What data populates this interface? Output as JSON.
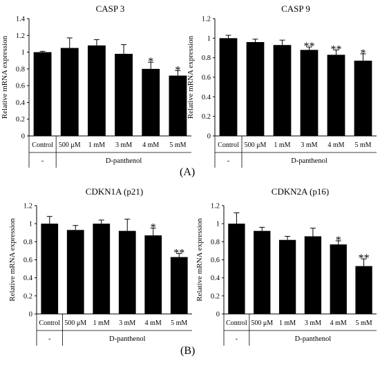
{
  "figure": {
    "panel_labels": [
      "(A)",
      "(B)"
    ]
  },
  "chart_data": [
    {
      "type": "bar",
      "title": "CASP 3",
      "ylabel": "Relative mRNA expression",
      "ylim": [
        0,
        1.4
      ],
      "yticks": [
        "0",
        "0.2",
        "0.4",
        "0.6",
        "0.8",
        "1",
        "1.2",
        "1.4"
      ],
      "categories": [
        "Control",
        "500 μM",
        "1 mM",
        "3 mM",
        "4 mM",
        "5 mM"
      ],
      "values": [
        1.0,
        1.05,
        1.08,
        0.98,
        0.8,
        0.72
      ],
      "errors": [
        0.01,
        0.12,
        0.07,
        0.11,
        0.08,
        0.06
      ],
      "significance": [
        "",
        "",
        "",
        "",
        "*",
        "*"
      ],
      "groups": [
        {
          "label": "-",
          "span": [
            0,
            0
          ]
        },
        {
          "label": "D-panthenol",
          "span": [
            1,
            5
          ]
        }
      ]
    },
    {
      "type": "bar",
      "title": "CASP 9",
      "ylabel": "Relative mRNA expression",
      "ylim": [
        0,
        1.2
      ],
      "yticks": [
        "0",
        "0.2",
        "0.4",
        "0.6",
        "0.8",
        "1",
        "1.2"
      ],
      "categories": [
        "Control",
        "500 μM",
        "1 mM",
        "3 mM",
        "4 mM",
        "5 mM"
      ],
      "values": [
        1.0,
        0.96,
        0.93,
        0.88,
        0.83,
        0.77
      ],
      "errors": [
        0.03,
        0.03,
        0.05,
        0.03,
        0.05,
        0.07
      ],
      "significance": [
        "",
        "",
        "",
        "**",
        "**",
        "*"
      ],
      "groups": [
        {
          "label": "-",
          "span": [
            0,
            0
          ]
        },
        {
          "label": "D-panthenol",
          "span": [
            1,
            5
          ]
        }
      ]
    },
    {
      "type": "bar",
      "title": "CDKN1A (p21)",
      "ylabel": "Relative mRNA expression",
      "ylim": [
        0,
        1.2
      ],
      "yticks": [
        "0",
        "0.2",
        "0.4",
        "0.6",
        "0.8",
        "1",
        "1.2"
      ],
      "categories": [
        "Control",
        "500 μM",
        "1 mM",
        "3 mM",
        "4 mM",
        "5 mM"
      ],
      "values": [
        1.0,
        0.93,
        1.0,
        0.92,
        0.87,
        0.63
      ],
      "errors": [
        0.08,
        0.05,
        0.04,
        0.13,
        0.08,
        0.04
      ],
      "significance": [
        "",
        "",
        "",
        "",
        "*",
        "**"
      ],
      "groups": [
        {
          "label": "-",
          "span": [
            0,
            0
          ]
        },
        {
          "label": "D-panthenol",
          "span": [
            1,
            5
          ]
        }
      ]
    },
    {
      "type": "bar",
      "title": "CDKN2A (p16)",
      "ylabel": "Relative mRNA expression",
      "ylim": [
        0,
        1.2
      ],
      "yticks": [
        "0",
        "0.2",
        "0.4",
        "0.6",
        "0.8",
        "1",
        "1.2"
      ],
      "categories": [
        "Control",
        "500 μM",
        "1 mM",
        "3 mM",
        "4 mM",
        "5 mM"
      ],
      "values": [
        1.0,
        0.92,
        0.82,
        0.86,
        0.77,
        0.53
      ],
      "errors": [
        0.12,
        0.04,
        0.04,
        0.09,
        0.04,
        0.08
      ],
      "significance": [
        "",
        "",
        "",
        "",
        "*",
        "**"
      ],
      "groups": [
        {
          "label": "-",
          "span": [
            0,
            0
          ]
        },
        {
          "label": "D-panthenol",
          "span": [
            1,
            5
          ]
        }
      ]
    }
  ]
}
